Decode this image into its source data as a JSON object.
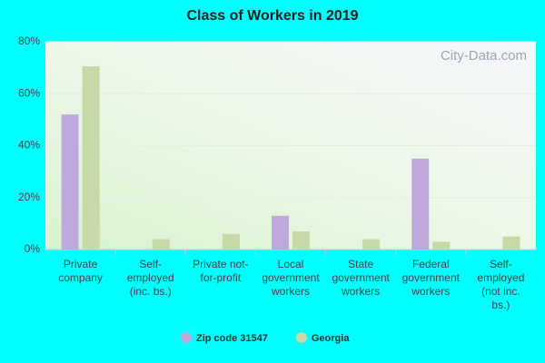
{
  "chart_data": {
    "type": "bar",
    "title": "Class of Workers in 2019",
    "watermark": "City-Data.com",
    "categories": [
      "Private company",
      "Self-employed (inc. bs.)",
      "Private not-for-profit",
      "Local government workers",
      "State government workers",
      "Federal government workers",
      "Self-employed (not inc. bs.)"
    ],
    "series": [
      {
        "name": "Zip code 31547",
        "color": "#bfa8dc",
        "values": [
          52,
          0,
          0,
          13,
          0,
          35,
          0
        ]
      },
      {
        "name": "Georgia",
        "color": "#c6d9a6",
        "values": [
          70.5,
          4,
          6,
          7,
          4,
          3,
          5
        ]
      }
    ],
    "ylim": [
      0,
      80
    ],
    "yticks": [
      {
        "value": 0,
        "label": "0%"
      },
      {
        "value": 20,
        "label": "20%"
      },
      {
        "value": 40,
        "label": "40%"
      },
      {
        "value": 60,
        "label": "60%"
      },
      {
        "value": 80,
        "label": "80%"
      }
    ],
    "grid": true,
    "legend": "bottom"
  }
}
